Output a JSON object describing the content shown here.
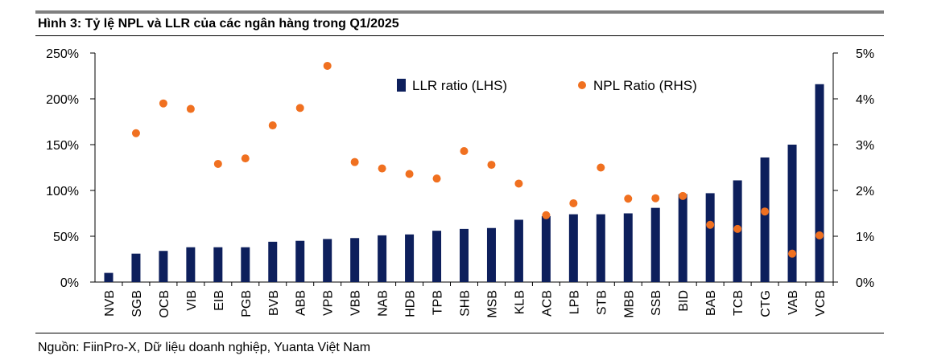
{
  "figure": {
    "title": "Hình 3: Tỷ lệ NPL và LLR của các ngân hàng trong Q1/2025",
    "source": "Nguồn: FiinPro-X, Dữ liệu doanh nghiệp, Yuanta Việt Nam"
  },
  "colors": {
    "bar": "#0d1f5c",
    "dot": "#f07020",
    "axis": "#000000",
    "rule": "#7f7f7f"
  },
  "chart_data": {
    "type": "bar",
    "title": "Hình 3: Tỷ lệ NPL và LLR của các ngân hàng trong Q1/2025",
    "categories": [
      "NVB",
      "SGB",
      "OCB",
      "VIB",
      "EIB",
      "PGB",
      "BVB",
      "ABB",
      "VPB",
      "VBB",
      "NAB",
      "HDB",
      "TPB",
      "SHB",
      "MSB",
      "KLB",
      "ACB",
      "LPB",
      "STB",
      "MBB",
      "SSB",
      "BID",
      "BAB",
      "TCB",
      "CTG",
      "VAB",
      "VCB"
    ],
    "series": [
      {
        "name": "LLR ratio (LHS)",
        "type": "bar",
        "axis": "left",
        "values": [
          10,
          31,
          34,
          38,
          38,
          38,
          44,
          45,
          47,
          48,
          51,
          52,
          56,
          58,
          59,
          68,
          72,
          74,
          74,
          75,
          81,
          96,
          97,
          111,
          136,
          150,
          216
        ]
      },
      {
        "name": "NPL Ratio (RHS)",
        "type": "scatter",
        "axis": "right",
        "values": [
          null,
          3.25,
          3.9,
          3.78,
          2.58,
          2.7,
          3.42,
          3.8,
          4.72,
          2.62,
          2.48,
          2.36,
          2.26,
          2.86,
          2.56,
          2.15,
          1.46,
          1.72,
          2.5,
          1.82,
          1.83,
          1.88,
          1.25,
          1.16,
          1.54,
          0.62,
          1.02
        ]
      }
    ],
    "y_left": {
      "ylim": [
        0,
        250
      ],
      "ticks": [
        "0%",
        "50%",
        "100%",
        "150%",
        "200%",
        "250%"
      ]
    },
    "y_right": {
      "ylim": [
        0,
        5
      ],
      "ticks": [
        "0%",
        "1%",
        "2%",
        "3%",
        "4%",
        "5%"
      ]
    },
    "legend_position": "top-right",
    "grid": false
  }
}
